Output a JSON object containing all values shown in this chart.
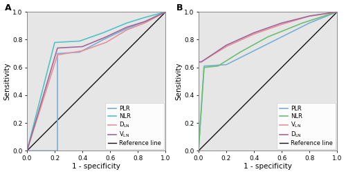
{
  "panel_A": {
    "title": "A",
    "curves": {
      "PLR": {
        "color": "#7aaed4",
        "fpr": [
          0.0,
          0.0,
          0.22,
          0.22,
          0.38,
          0.55,
          0.72,
          0.85,
          1.0
        ],
        "tpr": [
          0.0,
          0.0,
          0.0,
          0.7,
          0.71,
          0.8,
          0.88,
          0.93,
          1.0
        ]
      },
      "NLR": {
        "color": "#4fc4c4",
        "fpr": [
          0.0,
          0.0,
          0.2,
          0.38,
          0.55,
          0.72,
          0.85,
          1.0
        ],
        "tpr": [
          0.0,
          0.0,
          0.78,
          0.79,
          0.85,
          0.92,
          0.96,
          1.0
        ]
      },
      "DLN": {
        "color": "#e8909a",
        "fpr": [
          0.0,
          0.0,
          0.22,
          0.4,
          0.57,
          0.72,
          0.85,
          1.0
        ],
        "tpr": [
          0.0,
          0.0,
          0.69,
          0.72,
          0.78,
          0.87,
          0.92,
          1.0
        ]
      },
      "VLN": {
        "color": "#a06898",
        "fpr": [
          0.0,
          0.0,
          0.22,
          0.4,
          0.57,
          0.72,
          0.85,
          1.0
        ],
        "tpr": [
          0.0,
          0.0,
          0.74,
          0.75,
          0.82,
          0.89,
          0.93,
          1.0
        ]
      }
    },
    "legend_order": [
      "PLR",
      "NLR",
      "DLN",
      "VLN"
    ],
    "legend_labels": [
      "PLR",
      "NLR",
      "D_LN",
      "V_LN"
    ]
  },
  "panel_B": {
    "title": "B",
    "curves": {
      "PLR": {
        "color": "#7aaed4",
        "fpr": [
          0.0,
          0.0,
          0.04,
          0.2,
          0.4,
          0.6,
          0.8,
          1.0
        ],
        "tpr": [
          0.0,
          0.0,
          0.61,
          0.62,
          0.72,
          0.82,
          0.92,
          1.0
        ]
      },
      "NLR": {
        "color": "#6abf72",
        "fpr": [
          0.0,
          0.0,
          0.04,
          0.14,
          0.3,
          0.5,
          0.75,
          1.0
        ],
        "tpr": [
          0.0,
          0.0,
          0.6,
          0.61,
          0.71,
          0.82,
          0.92,
          1.0
        ]
      },
      "VLN": {
        "color": "#e8909a",
        "fpr": [
          0.0,
          0.0,
          0.02,
          0.2,
          0.4,
          0.6,
          0.8,
          1.0
        ],
        "tpr": [
          0.0,
          0.64,
          0.64,
          0.75,
          0.84,
          0.91,
          0.97,
          1.0
        ]
      },
      "DLN": {
        "color": "#a06898",
        "fpr": [
          0.0,
          0.0,
          0.02,
          0.2,
          0.4,
          0.6,
          0.8,
          1.0
        ],
        "tpr": [
          0.0,
          0.64,
          0.64,
          0.76,
          0.85,
          0.92,
          0.97,
          1.0
        ]
      }
    },
    "legend_order": [
      "PLR",
      "NLR",
      "VLN",
      "DLN"
    ],
    "legend_labels": [
      "PLR",
      "NLR",
      "V_LN",
      "D_LN"
    ]
  },
  "xlabel": "1 - specificity",
  "ylabel": "Sensitivity",
  "ref_color": "#111111",
  "fig_bg": "#ffffff",
  "axis_bg": "#e6e6e6",
  "tick_fontsize": 6.5,
  "label_fontsize": 7.5,
  "legend_fontsize": 6,
  "title_fontsize": 9
}
